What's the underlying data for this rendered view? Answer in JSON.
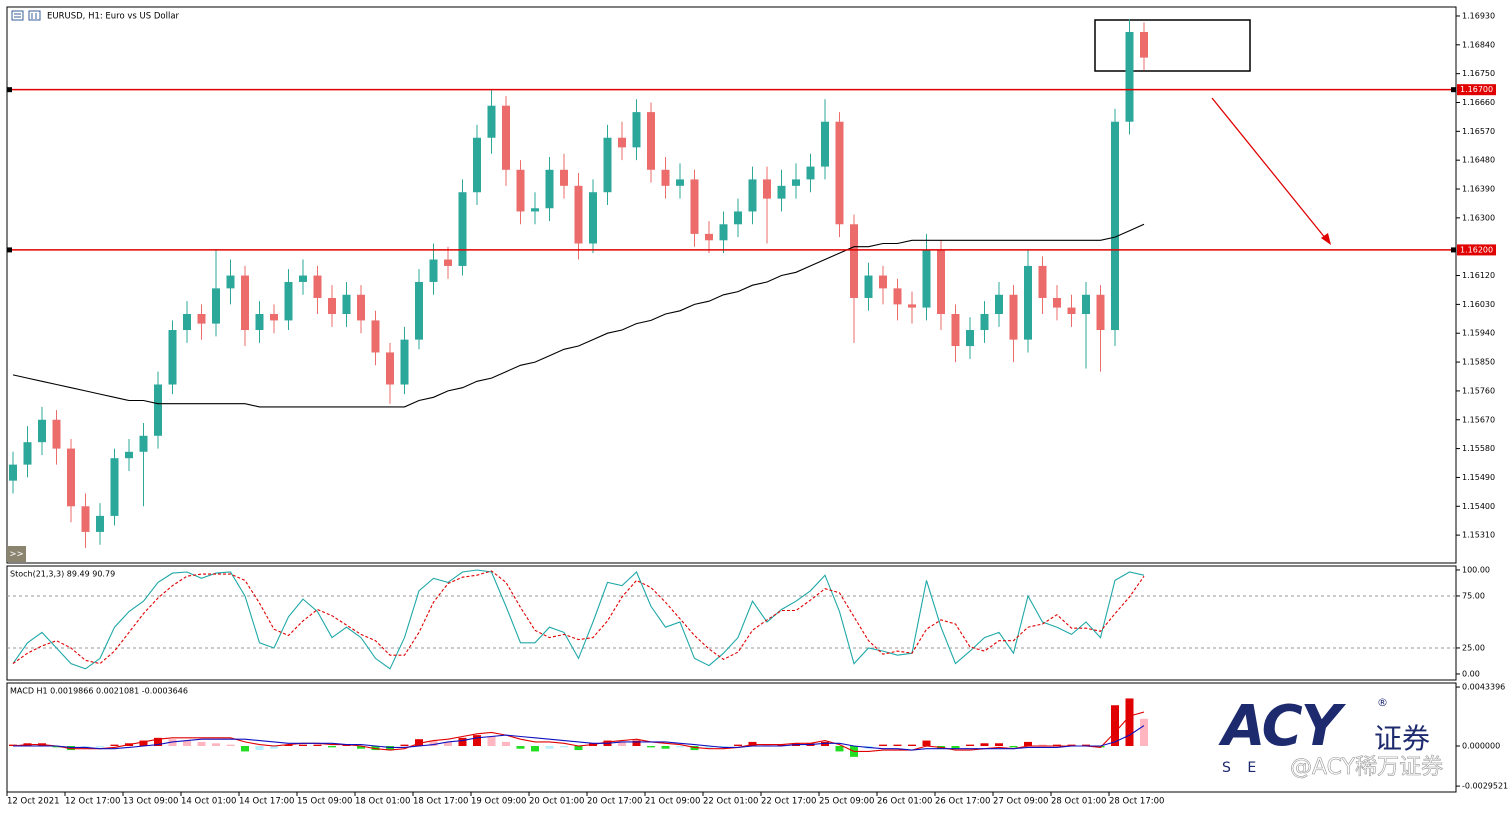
{
  "header": {
    "title": "EURUSD, H1:  Euro vs US Dollar"
  },
  "ui": {
    "scroll_button": ">>"
  },
  "watermark": {
    "logo": "ACY",
    "registered": "®",
    "name": "证券",
    "letters": "S E",
    "handle": "@ACY稀万证券"
  },
  "chart_data": [
    {
      "type": "candlestick",
      "categories": [
        "12 Oct 2021",
        null,
        null,
        null,
        "12 Oct 17:00",
        null,
        null,
        null,
        "13 Oct 09:00",
        null,
        null,
        null,
        "14 Oct 01:00",
        null,
        null,
        null,
        "14 Oct 17:00",
        null,
        null,
        null,
        "15 Oct 09:00",
        null,
        null,
        null,
        "18 Oct 01:00",
        null,
        null,
        null,
        "18 Oct 17:00",
        null,
        null,
        null,
        "19 Oct 09:00",
        null,
        null,
        null,
        "20 Oct 01:00",
        null,
        null,
        null,
        "20 Oct 17:00",
        null,
        null,
        null,
        "21 Oct 09:00",
        null,
        null,
        null,
        "22 Oct 01:00",
        null,
        null,
        null,
        "22 Oct 17:00",
        null,
        null,
        null,
        "25 Oct 09:00",
        null,
        null,
        null,
        "26 Oct 01:00",
        null,
        null,
        null,
        "26 Oct 17:00",
        null,
        null,
        null,
        "27 Oct 09:00",
        null,
        null,
        null,
        "28 Oct 01:00",
        null,
        null,
        null,
        "28 Oct 17:00",
        null,
        null
      ],
      "open": [
        1.1548,
        1.1553,
        1.156,
        1.1567,
        1.1558,
        1.154,
        1.1532,
        1.1537,
        1.1555,
        1.1557,
        1.1562,
        1.1578,
        1.1595,
        1.16,
        1.1597,
        1.1608,
        1.1612,
        1.1595,
        1.16,
        1.1598,
        1.161,
        1.1612,
        1.1605,
        1.16,
        1.1606,
        1.1598,
        1.1588,
        1.1578,
        1.1592,
        1.161,
        1.1617,
        1.1615,
        1.1638,
        1.1655,
        1.1665,
        1.1645,
        1.1632,
        1.1633,
        1.1645,
        1.164,
        1.1622,
        1.1638,
        1.1655,
        1.1652,
        1.1663,
        1.1645,
        1.164,
        1.1642,
        1.1625,
        1.1623,
        1.1628,
        1.1632,
        1.1642,
        1.1636,
        1.164,
        1.1642,
        1.1646,
        1.166,
        1.1628,
        1.1605,
        1.1612,
        1.1608,
        1.1603,
        1.1602,
        1.162,
        1.16,
        1.159,
        1.1595,
        1.16,
        1.1606,
        1.1592,
        1.1615,
        1.1605,
        1.1602,
        1.16,
        1.1606,
        1.1595,
        1.166,
        1.1688
      ],
      "high": [
        1.1557,
        1.1565,
        1.1571,
        1.157,
        1.1561,
        1.1544,
        1.1541,
        1.1558,
        1.1561,
        1.1566,
        1.1582,
        1.1598,
        1.1604,
        1.1603,
        1.162,
        1.1617,
        1.1615,
        1.1604,
        1.1603,
        1.1614,
        1.1617,
        1.1615,
        1.1609,
        1.161,
        1.1609,
        1.1601,
        1.1591,
        1.1596,
        1.1614,
        1.1622,
        1.1621,
        1.1642,
        1.1659,
        1.167,
        1.1668,
        1.1648,
        1.1638,
        1.1649,
        1.165,
        1.1644,
        1.1642,
        1.1659,
        1.166,
        1.1667,
        1.1666,
        1.1649,
        1.1647,
        1.1645,
        1.1629,
        1.1632,
        1.1636,
        1.1646,
        1.1646,
        1.1645,
        1.1647,
        1.165,
        1.1667,
        1.1663,
        1.1631,
        1.1616,
        1.1615,
        1.1611,
        1.1607,
        1.1625,
        1.1623,
        1.1603,
        1.1599,
        1.1604,
        1.161,
        1.1609,
        1.162,
        1.1618,
        1.1609,
        1.1606,
        1.161,
        1.1609,
        1.1664,
        1.1692,
        1.1691
      ],
      "low": [
        1.1544,
        1.1549,
        1.1556,
        1.1553,
        1.1535,
        1.1527,
        1.1528,
        1.1534,
        1.1551,
        1.154,
        1.1558,
        1.1575,
        1.1591,
        1.1592,
        1.1593,
        1.1603,
        1.159,
        1.1591,
        1.1594,
        1.1595,
        1.1606,
        1.16,
        1.1596,
        1.1596,
        1.1594,
        1.1584,
        1.1572,
        1.1575,
        1.1589,
        1.1606,
        1.1611,
        1.1612,
        1.1634,
        1.165,
        1.164,
        1.1628,
        1.1628,
        1.1629,
        1.1636,
        1.1617,
        1.1619,
        1.1634,
        1.1648,
        1.1648,
        1.1641,
        1.1636,
        1.1636,
        1.1621,
        1.1619,
        1.1619,
        1.1624,
        1.1628,
        1.1622,
        1.1632,
        1.1636,
        1.1638,
        1.1642,
        1.1624,
        1.1591,
        1.1601,
        1.1603,
        1.1598,
        1.1597,
        1.1598,
        1.1595,
        1.1585,
        1.1586,
        1.1591,
        1.1596,
        1.1585,
        1.1588,
        1.16,
        1.1598,
        1.1596,
        1.1583,
        1.1582,
        1.159,
        1.1656,
        1.1676
      ],
      "close": [
        1.1553,
        1.156,
        1.1567,
        1.1558,
        1.154,
        1.1532,
        1.1537,
        1.1555,
        1.1557,
        1.1562,
        1.1578,
        1.1595,
        1.16,
        1.1597,
        1.1608,
        1.1612,
        1.1595,
        1.16,
        1.1598,
        1.161,
        1.1612,
        1.1605,
        1.16,
        1.1606,
        1.1598,
        1.1588,
        1.1578,
        1.1592,
        1.161,
        1.1617,
        1.1615,
        1.1638,
        1.1655,
        1.1665,
        1.1645,
        1.1632,
        1.1633,
        1.1645,
        1.164,
        1.1622,
        1.1638,
        1.1655,
        1.1652,
        1.1663,
        1.1645,
        1.164,
        1.1642,
        1.1625,
        1.1623,
        1.1628,
        1.1632,
        1.1642,
        1.1636,
        1.164,
        1.1642,
        1.1646,
        1.166,
        1.1628,
        1.1605,
        1.1612,
        1.1608,
        1.1603,
        1.1602,
        1.162,
        1.16,
        1.159,
        1.1595,
        1.16,
        1.1606,
        1.1592,
        1.1615,
        1.1605,
        1.1602,
        1.16,
        1.1606,
        1.1595,
        1.166,
        1.1688,
        1.168
      ],
      "up_color": "#2ba89a",
      "down_color": "#ec6b6b",
      "series": [
        {
          "color": "#000000",
          "values": [
            1.1581,
            1.158,
            1.1579,
            1.1578,
            1.1577,
            1.1576,
            1.1575,
            1.1574,
            1.1573,
            1.1573,
            1.1572,
            1.1572,
            1.1572,
            1.1572,
            1.1572,
            1.1572,
            1.1572,
            1.1571,
            1.1571,
            1.1571,
            1.1571,
            1.1571,
            1.1571,
            1.1571,
            1.1571,
            1.1571,
            1.1571,
            1.1571,
            1.1573,
            1.1574,
            1.1576,
            1.1577,
            1.1579,
            1.158,
            1.1582,
            1.1584,
            1.1585,
            1.1587,
            1.1589,
            1.159,
            1.1592,
            1.1594,
            1.1595,
            1.1597,
            1.1598,
            1.16,
            1.1601,
            1.1603,
            1.1604,
            1.1606,
            1.1607,
            1.1609,
            1.161,
            1.1612,
            1.1613,
            1.1615,
            1.1617,
            1.1619,
            1.1621,
            1.1621,
            1.1622,
            1.1622,
            1.1623,
            1.1623,
            1.1623,
            1.1623,
            1.1623,
            1.1623,
            1.1623,
            1.1623,
            1.1623,
            1.1623,
            1.1623,
            1.1623,
            1.1623,
            1.1623,
            1.1624,
            1.1626,
            1.1628
          ]
        }
      ],
      "hlines": [
        {
          "value": 1.167,
          "label": "1.16700"
        },
        {
          "value": 1.162,
          "label": "1.16200"
        }
      ],
      "hline_color": "#e00000",
      "ylim": [
        1.15223,
        1.16958
      ],
      "yticks": [
        {
          "value": 1.1693,
          "label": "1.16930"
        },
        {
          "value": 1.1684,
          "label": "1.16840"
        },
        {
          "value": 1.1675,
          "label": "1.16750"
        },
        {
          "value": 1.1666,
          "label": "1.16660"
        },
        {
          "value": 1.1657,
          "label": "1.16570"
        },
        {
          "value": 1.1648,
          "label": "1.16480"
        },
        {
          "value": 1.1639,
          "label": "1.16390"
        },
        {
          "value": 1.163,
          "label": "1.16300"
        },
        {
          "value": 1.1612,
          "label": "1.16120"
        },
        {
          "value": 1.1603,
          "label": "1.16030"
        },
        {
          "value": 1.1594,
          "label": "1.15940"
        },
        {
          "value": 1.1585,
          "label": "1.15850"
        },
        {
          "value": 1.1576,
          "label": "1.15760"
        },
        {
          "value": 1.1567,
          "label": "1.15670"
        },
        {
          "value": 1.1558,
          "label": "1.15580"
        },
        {
          "value": 1.1549,
          "label": "1.15490"
        },
        {
          "value": 1.154,
          "label": "1.15400"
        },
        {
          "value": 1.1531,
          "label": "1.15310"
        }
      ]
    },
    {
      "type": "line",
      "title": "Stoch(21,3,3) 89.49 90.79",
      "series": [
        {
          "color": "#20a8a8",
          "values": [
            10,
            30,
            40,
            25,
            10,
            5,
            15,
            45,
            60,
            70,
            88,
            97,
            98,
            92,
            97,
            98,
            75,
            30,
            25,
            55,
            72,
            60,
            35,
            45,
            35,
            15,
            5,
            35,
            80,
            92,
            88,
            98,
            100,
            98,
            65,
            30,
            30,
            45,
            40,
            15,
            50,
            88,
            85,
            98,
            65,
            45,
            50,
            15,
            8,
            20,
            35,
            70,
            50,
            62,
            70,
            80,
            95,
            60,
            10,
            25,
            22,
            18,
            20,
            90,
            45,
            10,
            22,
            35,
            40,
            20,
            75,
            50,
            45,
            38,
            50,
            35,
            90,
            98,
            95
          ]
        },
        {
          "color": "#e00000",
          "dash": true,
          "values": [
            10,
            20,
            27,
            32,
            25,
            13,
            10,
            22,
            40,
            58,
            73,
            85,
            94,
            96,
            96,
            96,
            90,
            68,
            43,
            37,
            51,
            62,
            56,
            47,
            38,
            32,
            18,
            18,
            40,
            69,
            87,
            93,
            95,
            99,
            88,
            64,
            42,
            35,
            38,
            33,
            35,
            51,
            74,
            90,
            83,
            69,
            53,
            37,
            24,
            14,
            21,
            42,
            52,
            61,
            61,
            71,
            82,
            78,
            55,
            32,
            19,
            22,
            20,
            43,
            52,
            48,
            26,
            22,
            32,
            32,
            45,
            48,
            57,
            44,
            44,
            41,
            58,
            74,
            94
          ]
        }
      ],
      "levels": [
        75,
        25
      ],
      "ylim": [
        -5.8,
        103.8
      ],
      "yticks": [
        {
          "value": 100,
          "label": "100.00"
        },
        {
          "value": 75,
          "label": "75.00"
        },
        {
          "value": 25,
          "label": "25.00"
        },
        {
          "value": 0,
          "label": "0.00"
        }
      ]
    },
    {
      "type": "macd",
      "title": "MACD H1 0.0019866 0.0021081 -0.0003646",
      "histogram": [
        0.0001,
        0.0002,
        0.0002,
        -0.0001,
        -0.0003,
        -0.0002,
        -0.0001,
        0.0001,
        0.0002,
        0.0004,
        0.0006,
        0.0005,
        0.0004,
        0.0003,
        0.0002,
        0.0001,
        -0.0004,
        -0.0003,
        -0.0002,
        0.0001,
        0.0001,
        0.0001,
        -0.0001,
        0.0001,
        -0.0002,
        -0.0003,
        -0.0003,
        0.0001,
        0.0005,
        0.0004,
        0.0003,
        0.0006,
        0.0008,
        0.0007,
        0.0003,
        -0.0002,
        -0.0004,
        -0.0002,
        -0.0001,
        -0.0003,
        0.0002,
        0.0004,
        0.0003,
        0.0004,
        -0.0001,
        -0.0002,
        -0.0001,
        -0.0003,
        -0.0002,
        -0.0001,
        0.0001,
        0.0003,
        0.0001,
        0.0001,
        0.0002,
        0.0002,
        0.0003,
        -0.0004,
        -0.0008,
        -0.0002,
        0.0001,
        0.0001,
        0.0001,
        0.0004,
        -0.0002,
        -0.0002,
        0.0001,
        0.0002,
        0.0002,
        -0.0001,
        0.0003,
        0.0001,
        0.0001,
        0.0001,
        0.0001,
        -0.0001,
        0.003,
        0.0035,
        0.002
      ],
      "bar_colors": [
        "#e00000",
        "#ffb6c1",
        "#22dd22",
        "#b8f0ff"
      ],
      "series": [
        {
          "color": "#e00000",
          "values": [
            0,
            0.0001,
            0.0001,
            0,
            -0.0002,
            -0.0002,
            -0.0002,
            -0.0001,
            0.0001,
            0.0003,
            0.0005,
            0.0006,
            0.0006,
            0.0006,
            0.0006,
            0.0006,
            0.0003,
            0.0001,
            0,
            0.0001,
            0.0002,
            0.0002,
            0.0001,
            0.0001,
            0,
            -0.0002,
            -0.0003,
            -0.0002,
            0.0002,
            0.0004,
            0.0005,
            0.0007,
            0.0009,
            0.001,
            0.0008,
            0.0005,
            0.0003,
            0.0003,
            0.0002,
            0,
            0.0001,
            0.0003,
            0.0004,
            0.0005,
            0.0003,
            0.0002,
            0.0001,
            -0.0001,
            -0.0002,
            -0.0002,
            -0.0001,
            0.0001,
            0.0001,
            0.0001,
            0.0002,
            0.0002,
            0.0004,
            0.0001,
            -0.0004,
            -0.0004,
            -0.0003,
            -0.0003,
            -0.0003,
            0,
            -0.0001,
            -0.0003,
            -0.0003,
            -0.0002,
            -0.0001,
            -0.0002,
            0,
            0,
            0,
            0,
            0,
            -0.0001,
            0.001,
            0.0022,
            0.0025
          ]
        },
        {
          "color": "#1010c0",
          "values": [
            0,
            0,
            0,
            0,
            -0.0001,
            -0.0001,
            -0.0002,
            -0.0002,
            -0.0001,
            0,
            0.0001,
            0.0003,
            0.0004,
            0.0005,
            0.0005,
            0.0005,
            0.0005,
            0.0004,
            0.0003,
            0.0002,
            0.0002,
            0.0002,
            0.0002,
            0.0001,
            0.0001,
            0,
            -0.0001,
            -0.0001,
            0,
            0.0001,
            0.0003,
            0.0004,
            0.0006,
            0.0007,
            0.0008,
            0.0007,
            0.0006,
            0.0005,
            0.0004,
            0.0003,
            0.0002,
            0.0002,
            0.0003,
            0.0003,
            0.0003,
            0.0003,
            0.0002,
            0.0001,
            0,
            -0.0001,
            -0.0001,
            0,
            0,
            0,
            0.0001,
            0.0001,
            0.0002,
            0.0002,
            0,
            -0.0001,
            -0.0002,
            -0.0002,
            -0.0003,
            -0.0002,
            -0.0002,
            -0.0002,
            -0.0002,
            -0.0002,
            -0.0002,
            -0.0002,
            -0.0001,
            -0.0001,
            -0.0001,
            0,
            0,
            0,
            0.0003,
            0.0008,
            0.0015
          ]
        }
      ],
      "ylim": [
        -0.003386,
        0.004637
      ],
      "yticks": [
        0.0043396,
        {
          "value": 0,
          "label": "0.000000"
        },
        -0.0029521
      ]
    }
  ]
}
